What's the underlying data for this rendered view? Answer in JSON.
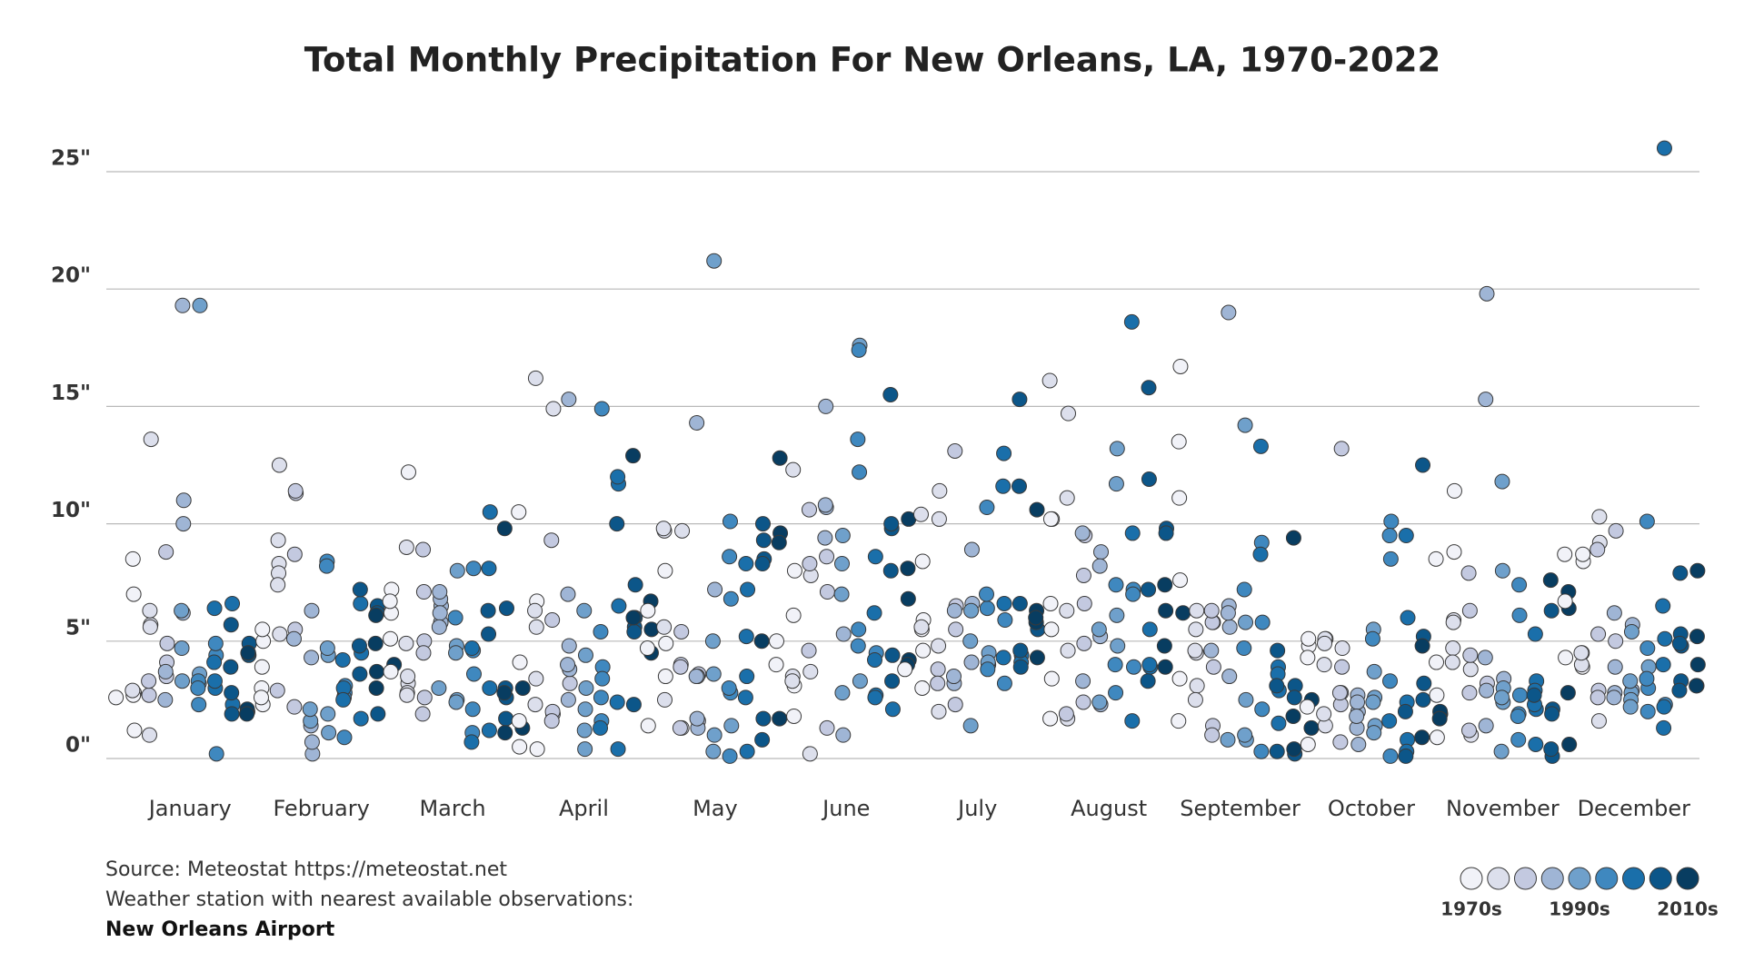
{
  "chart_data": {
    "type": "strip",
    "title": "Total Monthly Precipitation For New Orleans, LA, 1970-2022",
    "categories": [
      "January",
      "February",
      "March",
      "April",
      "May",
      "June",
      "July",
      "August",
      "September",
      "October",
      "November",
      "December"
    ],
    "values": [
      [
        2.6,
        1.2,
        2.8,
        7.0,
        2.7,
        8.5,
        2.9,
        13.6,
        5.7,
        5.6,
        6.3,
        1.0,
        2.7,
        3.3,
        4.9,
        4.1,
        3.5,
        8.8,
        3.7,
        2.5,
        11.0,
        10.0,
        6.2,
        19.3,
        3.3,
        4.7,
        6.3,
        19.3,
        3.6,
        3.2,
        2.3,
        3.3,
        3.0,
        0.2,
        4.4,
        4.9,
        3.0,
        3.3,
        6.4,
        4.1,
        2.3,
        6.6,
        1.9,
        2.8,
        5.7,
        3.9,
        4.9,
        4.4,
        4.5,
        4.5,
        2.0,
        2.1,
        1.9
      ],
      [
        5.0,
        2.3,
        5.5,
        3.9,
        3.0,
        2.6,
        5.3,
        12.5,
        8.3,
        7.9,
        9.3,
        7.4,
        2.9,
        11.3,
        11.4,
        5.5,
        8.7,
        2.2,
        5.1,
        0.2,
        0.7,
        6.3,
        4.3,
        1.4,
        1.6,
        2.1,
        1.1,
        4.4,
        1.9,
        4.7,
        8.4,
        8.2,
        3.1,
        2.8,
        0.9,
        2.6,
        3.0,
        2.5,
        4.2,
        4.5,
        1.7,
        6.6,
        7.2,
        3.6,
        4.8,
        1.9,
        6.5,
        6.2,
        3.7,
        3.0,
        6.1,
        4.9,
        4.0
      ],
      [
        7.2,
        6.2,
        3.7,
        5.1,
        6.7,
        12.2,
        3.2,
        3.5,
        2.8,
        2.7,
        9.0,
        4.9,
        2.6,
        5.0,
        7.1,
        4.5,
        8.9,
        1.9,
        6.5,
        5.8,
        6.8,
        6.2,
        7.1,
        5.6,
        3.0,
        8.0,
        2.5,
        4.8,
        2.4,
        4.5,
        6.0,
        3.6,
        8.1,
        4.6,
        2.1,
        1.1,
        4.7,
        0.7,
        10.5,
        3.0,
        1.2,
        8.1,
        5.3,
        6.3,
        6.4,
        2.6,
        1.7,
        3.0,
        1.1,
        9.8,
        2.8,
        3.0,
        1.3
      ],
      [
        4.1,
        0.5,
        1.6,
        10.5,
        0.4,
        6.7,
        5.6,
        3.4,
        16.2,
        2.3,
        6.3,
        14.9,
        1.9,
        2.0,
        5.9,
        1.6,
        9.3,
        3.2,
        3.8,
        4.8,
        15.3,
        2.5,
        7.0,
        4.0,
        3.0,
        4.4,
        2.1,
        0.4,
        1.2,
        6.3,
        3.9,
        3.4,
        14.9,
        1.6,
        2.6,
        5.4,
        1.3,
        6.5,
        11.7,
        0.4,
        12.0,
        2.4,
        10.0,
        7.4,
        6.0,
        5.6,
        5.4,
        2.3,
        6.0,
        12.9,
        5.5,
        4.5,
        6.7
      ],
      [
        1.4,
        6.3,
        4.7,
        4.9,
        3.5,
        8.0,
        2.5,
        9.7,
        5.6,
        9.8,
        9.7,
        1.3,
        5.4,
        4.0,
        3.9,
        1.3,
        3.6,
        1.6,
        1.3,
        3.5,
        1.7,
        14.3,
        3.5,
        7.2,
        1.0,
        21.2,
        3.6,
        0.3,
        5.0,
        1.4,
        6.8,
        2.8,
        10.1,
        0.1,
        8.6,
        3.0,
        7.2,
        0.3,
        3.5,
        5.2,
        8.3,
        2.6,
        8.5,
        9.3,
        1.7,
        10.0,
        8.3,
        0.8,
        5.0,
        9.6,
        12.8,
        1.7,
        9.2
      ],
      [
        5.0,
        4.0,
        8.0,
        3.1,
        1.8,
        6.1,
        12.3,
        3.5,
        3.3,
        7.8,
        3.7,
        0.2,
        8.3,
        10.6,
        4.6,
        7.1,
        1.3,
        8.6,
        10.7,
        15.0,
        10.8,
        9.4,
        5.3,
        1.0,
        9.5,
        2.8,
        8.3,
        7.0,
        3.3,
        17.6,
        12.2,
        17.4,
        5.5,
        4.8,
        13.6,
        4.5,
        2.7,
        8.6,
        2.6,
        4.2,
        6.2,
        2.1,
        4.4,
        3.3,
        9.8,
        10.0,
        8.0,
        15.5,
        4.2,
        10.2,
        6.8,
        8.1,
        4.0
      ],
      [
        3.8,
        5.9,
        4.6,
        8.4,
        3.0,
        5.5,
        5.6,
        10.4,
        11.4,
        10.2,
        2.0,
        4.8,
        3.8,
        3.2,
        6.5,
        5.5,
        2.3,
        13.1,
        6.3,
        3.2,
        3.5,
        6.6,
        8.9,
        4.1,
        6.3,
        1.4,
        5.0,
        4.5,
        4.0,
        4.1,
        3.8,
        6.4,
        10.7,
        7.0,
        5.9,
        3.2,
        6.6,
        13.0,
        4.3,
        11.6,
        4.4,
        4.1,
        3.9,
        4.6,
        6.6,
        15.3,
        11.6,
        5.5,
        4.3,
        10.6,
        6.3,
        5.8,
        6.0
      ],
      [
        10.2,
        3.4,
        5.5,
        10.2,
        6.6,
        1.7,
        16.1,
        14.7,
        4.6,
        1.7,
        11.1,
        6.3,
        1.9,
        9.5,
        6.6,
        4.9,
        7.8,
        2.4,
        3.3,
        9.6,
        8.8,
        2.3,
        5.2,
        8.2,
        2.4,
        5.5,
        4.8,
        13.2,
        6.1,
        11.7,
        7.4,
        2.8,
        4.0,
        3.9,
        7.2,
        7.0,
        9.6,
        1.6,
        18.6,
        3.9,
        5.5,
        4.0,
        11.9,
        15.8,
        7.2,
        3.3,
        9.8,
        9.6,
        6.3,
        3.9,
        7.4,
        4.8,
        6.2
      ],
      [
        16.7,
        7.6,
        3.4,
        11.1,
        13.5,
        1.6,
        3.1,
        6.3,
        4.5,
        5.5,
        2.5,
        4.6,
        3.9,
        5.8,
        1.4,
        5.8,
        1.0,
        6.3,
        4.6,
        5.6,
        3.5,
        6.5,
        19.0,
        6.2,
        0.8,
        0.8,
        2.5,
        5.8,
        14.2,
        1.0,
        7.2,
        4.7,
        5.8,
        2.1,
        9.2,
        0.3,
        13.3,
        8.7,
        2.9,
        1.5,
        3.9,
        3.6,
        4.6,
        0.3,
        3.1,
        3.1,
        0.2,
        2.6,
        0.4,
        9.4,
        1.8,
        2.5,
        1.3
      ],
      [
        4.8,
        5.1,
        0.6,
        4.3,
        2.2,
        5.1,
        1.4,
        5.1,
        4.9,
        4.0,
        1.9,
        4.7,
        3.9,
        13.2,
        2.8,
        2.3,
        0.7,
        2.8,
        0.6,
        2.0,
        2.7,
        2.4,
        1.3,
        1.8,
        1.4,
        2.6,
        3.7,
        1.1,
        5.5,
        2.4,
        5.1,
        10.1,
        8.5,
        0.1,
        3.3,
        9.5,
        1.6,
        6.0,
        0.8,
        2.4,
        0.3,
        9.5,
        0.1,
        2.0,
        3.2,
        5.2,
        2.5,
        12.5,
        4.8,
        0.9,
        1.9,
        2.0,
        1.7
      ],
      [
        0.9,
        2.7,
        4.1,
        8.5,
        11.4,
        8.8,
        5.9,
        5.8,
        4.7,
        4.1,
        1.0,
        3.8,
        4.4,
        6.3,
        2.8,
        1.2,
        7.9,
        3.2,
        19.8,
        2.9,
        1.4,
        15.3,
        4.3,
        3.4,
        3.0,
        2.4,
        8.0,
        11.8,
        2.6,
        0.3,
        2.7,
        6.1,
        7.4,
        1.9,
        0.8,
        1.8,
        3.3,
        2.1,
        0.6,
        5.3,
        2.9,
        2.3,
        2.7,
        2.1,
        0.1,
        1.9,
        6.3,
        0.4,
        7.6,
        0.6,
        6.4,
        7.1,
        2.8
      ],
      [
        4.3,
        6.7,
        8.7,
        8.4,
        8.7,
        3.9,
        4.5,
        4.0,
        4.5,
        9.2,
        10.3,
        1.6,
        2.9,
        5.3,
        2.6,
        8.9,
        9.7,
        5.0,
        3.9,
        2.8,
        6.2,
        2.6,
        5.7,
        2.9,
        5.4,
        2.8,
        2.5,
        2.2,
        3.3,
        3.9,
        3.0,
        2.0,
        4.7,
        10.1,
        3.4,
        2.3,
        5.1,
        26.0,
        2.2,
        1.3,
        4.0,
        6.5,
        4.8,
        3.3,
        5.3,
        7.9,
        4.9,
        2.9,
        4.0,
        8.0,
        5.2,
        3.1,
        3.1
      ]
    ],
    "color_scale": [
      "#f1f2f8",
      "#dcdfec",
      "#c3c9e0",
      "#9fb5d5",
      "#6fa0cb",
      "#3f88bf",
      "#1a6faa",
      "#0c5689",
      "#083d61"
    ],
    "color_scale_labels": [
      "1970s",
      "1990s",
      "2010s"
    ],
    "ylim": [
      -1,
      27.5
    ],
    "yticks": [
      {
        "value": 0,
        "label": "0\""
      },
      {
        "value": 5,
        "label": "5\""
      },
      {
        "value": 10,
        "label": "10\""
      },
      {
        "value": 15,
        "label": "15\""
      },
      {
        "value": 20,
        "label": "20\""
      },
      {
        "value": 25,
        "label": "25\""
      }
    ],
    "grid": true,
    "notes": [
      "Source: Meteostat https://meteostat.net",
      "Weather station with nearest available observations:",
      "New Orleans Airport"
    ]
  }
}
